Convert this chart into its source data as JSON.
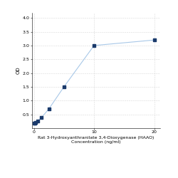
{
  "x": [
    0,
    0.156,
    0.313,
    0.625,
    1.25,
    2.5,
    5,
    10,
    20
  ],
  "y": [
    0.175,
    0.19,
    0.21,
    0.26,
    0.38,
    0.7,
    1.5,
    3.0,
    3.2
  ],
  "line_color": "#a8c8e8",
  "marker_color": "#1a3a6b",
  "marker_style": "s",
  "marker_size": 3,
  "line_width": 0.8,
  "xlabel_line1": "Rat 3-Hydroxyanthranilate 3,4-Dioxygenase (HAAO)",
  "xlabel_line2": "Concentration (ng/ml)",
  "ylabel": "OD",
  "xlim": [
    -0.3,
    21
  ],
  "ylim": [
    0,
    4.2
  ],
  "yticks": [
    0.5,
    1,
    1.5,
    2,
    2.5,
    3,
    3.5,
    4
  ],
  "xticks": [
    0,
    10,
    20
  ],
  "grid_color": "#d8d8d8",
  "background_color": "#ffffff",
  "font_size_label": 4.5,
  "font_size_tick": 4.5,
  "font_size_ylabel": 5
}
